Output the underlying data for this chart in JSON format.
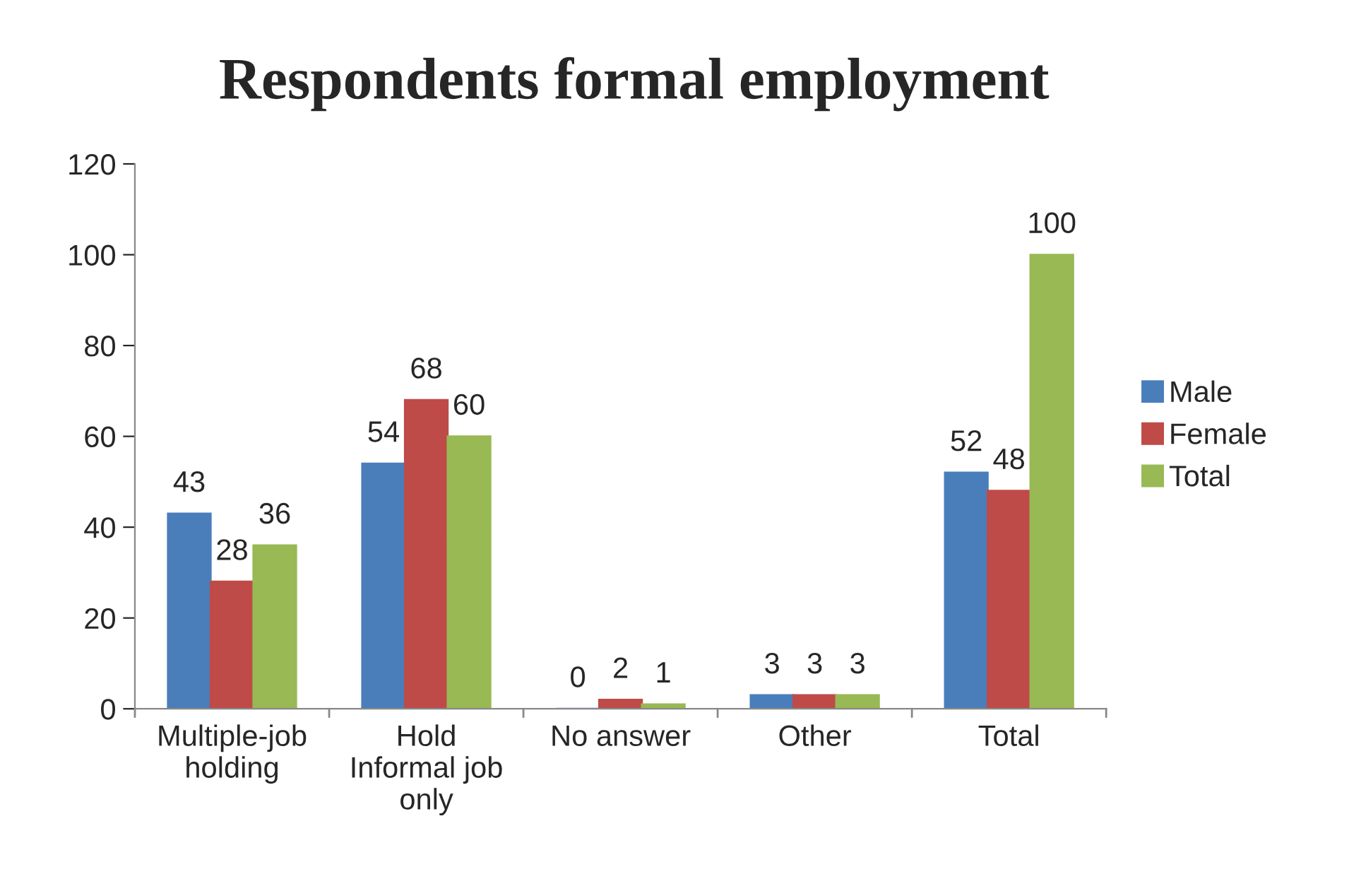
{
  "chart_data": {
    "type": "bar",
    "title": "Respondents formal employment",
    "categories": [
      "Multiple-job\nholding",
      "Hold\nInformal job\nonly",
      "No answer",
      "Other",
      "Total"
    ],
    "series": [
      {
        "name": "Male",
        "color": "#4a7ebb",
        "values": [
          43,
          54,
          0,
          3,
          52
        ]
      },
      {
        "name": "Female",
        "color": "#be4b48",
        "values": [
          28,
          68,
          2,
          3,
          48
        ]
      },
      {
        "name": "Total",
        "color": "#98b954",
        "values": [
          36,
          60,
          1,
          3,
          100
        ]
      }
    ],
    "ylim": [
      0,
      120
    ],
    "yticks": [
      0,
      20,
      40,
      60,
      80,
      100,
      120
    ],
    "grid": false,
    "legend": "right",
    "data_labels": true
  }
}
